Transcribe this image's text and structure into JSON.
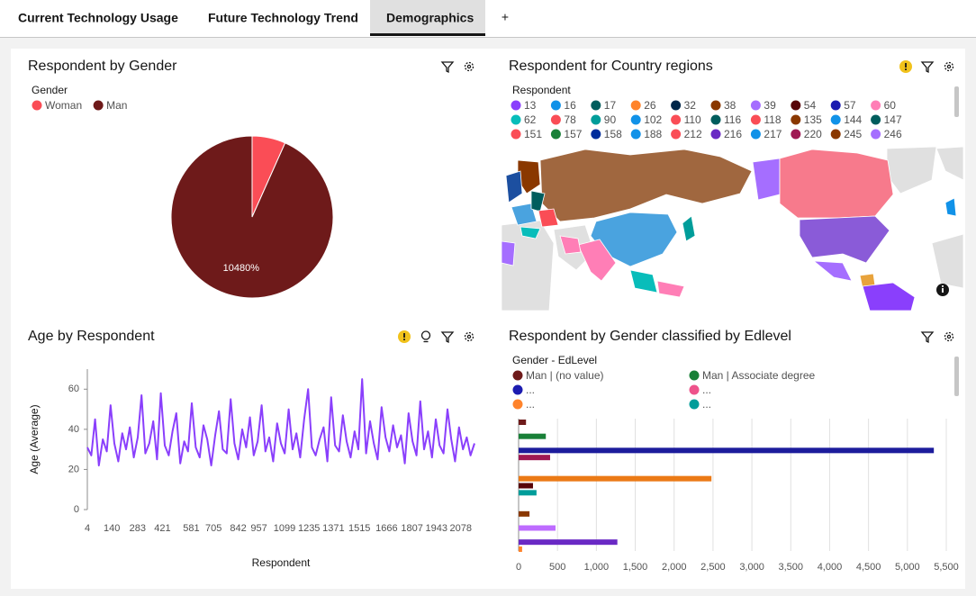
{
  "tabs": {
    "items": [
      "Current Technology Usage",
      "Future Technology Trend",
      "Demographics"
    ],
    "active": 2,
    "add": "+"
  },
  "chart_data": [
    {
      "type": "pie",
      "title": "Respondent by Gender",
      "legend_title": "Gender",
      "categories": [
        "Woman",
        "Man"
      ],
      "values": [
        750,
        10480
      ],
      "value_labels": [
        null,
        "10480%"
      ],
      "colors": [
        "#fa4d56",
        "#6e1a1a"
      ]
    },
    {
      "type": "map",
      "title": "Respondent for Country regions",
      "warning": true,
      "legend_title": "Respondent",
      "legend": [
        {
          "label": 13,
          "color": "#8a3ffc"
        },
        {
          "label": 16,
          "color": "#1192e8"
        },
        {
          "label": 17,
          "color": "#005d5d"
        },
        {
          "label": 26,
          "color": "#ff832b"
        },
        {
          "label": 32,
          "color": "#012749"
        },
        {
          "label": 38,
          "color": "#8a3800"
        },
        {
          "label": 39,
          "color": "#a56eff"
        },
        {
          "label": 54,
          "color": "#570408"
        },
        {
          "label": 57,
          "color": "#1c1cb0"
        },
        {
          "label": 60,
          "color": "#ff7eb6"
        },
        {
          "label": 62,
          "color": "#08bdba"
        },
        {
          "label": 78,
          "color": "#fa4d56"
        },
        {
          "label": 90,
          "color": "#009d9a"
        },
        {
          "label": 102,
          "color": "#1192e8"
        },
        {
          "label": 110,
          "color": "#fa4d56"
        },
        {
          "label": 116,
          "color": "#005d5d"
        },
        {
          "label": 118,
          "color": "#fa4d56"
        },
        {
          "label": 135,
          "color": "#8a3800"
        },
        {
          "label": 144,
          "color": "#1192e8"
        },
        {
          "label": 147,
          "color": "#005d5d"
        },
        {
          "label": 151,
          "color": "#fa4d56"
        },
        {
          "label": 157,
          "color": "#198038"
        },
        {
          "label": 158,
          "color": "#002d9c"
        },
        {
          "label": 188,
          "color": "#1192e8"
        },
        {
          "label": 212,
          "color": "#fa4d56"
        },
        {
          "label": 216,
          "color": "#6929c4"
        },
        {
          "label": 217,
          "color": "#1192e8"
        },
        {
          "label": 220,
          "color": "#9f1853"
        },
        {
          "label": 245,
          "color": "#8a3800"
        },
        {
          "label": 246,
          "color": "#a56eff"
        }
      ]
    },
    {
      "type": "line",
      "title": "Age by Respondent",
      "warning": true,
      "x_label": "Respondent",
      "y_label": "Age (Average)",
      "color": "#8a3ffc",
      "x": [
        4,
        26,
        47,
        68,
        90,
        112,
        133,
        154,
        176,
        198,
        219,
        240,
        262,
        284,
        305,
        326,
        348,
        370,
        391,
        412,
        434,
        456,
        477,
        498,
        520,
        542,
        563,
        584,
        606,
        628,
        649,
        670,
        692,
        714,
        735,
        756,
        778,
        800,
        821,
        842,
        864,
        886,
        907,
        928,
        950,
        972,
        993,
        1014,
        1036,
        1058,
        1079,
        1100,
        1122,
        1144,
        1165,
        1186,
        1208,
        1230,
        1251,
        1272,
        1294,
        1316,
        1337,
        1358,
        1380,
        1402,
        1423,
        1444,
        1466,
        1488,
        1509,
        1530,
        1552,
        1574,
        1595,
        1616,
        1638,
        1660,
        1681,
        1702,
        1724,
        1746,
        1767,
        1788,
        1810,
        1832,
        1853,
        1874,
        1896,
        1918,
        1939,
        1960,
        1982,
        2004,
        2025,
        2046,
        2068,
        2090,
        2111,
        2132,
        2154
      ],
      "values": [
        31,
        27,
        45,
        22,
        35,
        29,
        52,
        33,
        24,
        38,
        30,
        41,
        26,
        36,
        57,
        28,
        33,
        44,
        25,
        58,
        32,
        27,
        39,
        48,
        23,
        34,
        29,
        53,
        31,
        26,
        42,
        35,
        22,
        37,
        49,
        30,
        28,
        55,
        33,
        25,
        40,
        31,
        46,
        27,
        34,
        52,
        29,
        36,
        24,
        43,
        33,
        28,
        50,
        30,
        38,
        26,
        45,
        60,
        31,
        27,
        35,
        41,
        24,
        56,
        32,
        29,
        47,
        34,
        26,
        39,
        30,
        65,
        28,
        44,
        33,
        25,
        51,
        36,
        29,
        42,
        31,
        37,
        23,
        48,
        34,
        27,
        54,
        30,
        39,
        26,
        45,
        32,
        28,
        50,
        35,
        24,
        41,
        30,
        36,
        27,
        33
      ],
      "xlim": [
        4,
        2154
      ],
      "xticks": [
        4,
        140,
        283,
        421,
        581,
        705,
        842,
        957,
        1099,
        1235,
        1371,
        1515,
        1666,
        1807,
        1943,
        2078
      ],
      "ylim": [
        0,
        70
      ],
      "yticks": [
        0,
        20,
        40,
        60
      ]
    },
    {
      "type": "bar",
      "orientation": "horizontal",
      "title": "Respondent by Gender classified by Edlevel",
      "legend_title": "Gender - EdLevel",
      "legend": [
        {
          "name": "Man | (no value)",
          "color": "#6e1a1a"
        },
        {
          "name": "Man | Associate degree",
          "color": "#198038"
        },
        {
          "name": "...",
          "color": "#1c1cb0"
        },
        {
          "name": "...",
          "color": "#ee538b"
        },
        {
          "name": "...",
          "color": "#ff832b"
        },
        {
          "name": "...",
          "color": "#009d9a"
        }
      ],
      "values": [
        95,
        null,
        350,
        null,
        5340,
        405,
        null,
        null,
        2480,
        185,
        230,
        null,
        null,
        140,
        null,
        475,
        null,
        1270,
        45
      ],
      "colors": [
        "#6e1a1a",
        null,
        "#198038",
        null,
        "#1c1c9c",
        "#9f1853",
        null,
        null,
        "#eb7a16",
        "#570408",
        "#009d9a",
        null,
        null,
        "#8a3800",
        null,
        "#be6cff",
        null,
        "#6929c4",
        "#ff832b"
      ],
      "xlim": [
        0,
        5500
      ],
      "xticks": [
        0,
        500,
        {
          "value": 1000,
          "label": "1,000"
        },
        {
          "value": 1500,
          "label": "1,500"
        },
        {
          "value": 2000,
          "label": "2,000"
        },
        {
          "value": 2500,
          "label": "2,500"
        },
        {
          "value": 3000,
          "label": "3,000"
        },
        {
          "value": 3500,
          "label": "3,500"
        },
        {
          "value": 4000,
          "label": "4,000"
        },
        {
          "value": 4500,
          "label": "4,500"
        },
        {
          "value": 5000,
          "label": "5,000"
        },
        {
          "value": 5500,
          "label": "5,500"
        }
      ],
      "grid": true
    }
  ]
}
